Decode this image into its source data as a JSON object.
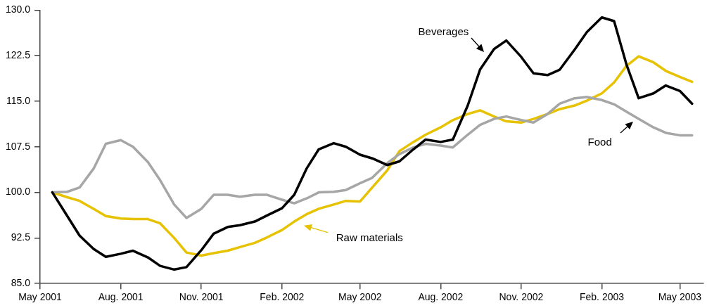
{
  "chart_data": {
    "type": "line",
    "x": [
      "2001-05-15",
      "2001-06-01",
      "2001-06-15",
      "2001-07-01",
      "2001-07-15",
      "2001-08-01",
      "2001-08-15",
      "2001-09-01",
      "2001-09-15",
      "2001-10-01",
      "2001-10-15",
      "2001-11-01",
      "2001-11-15",
      "2001-12-01",
      "2001-12-15",
      "2002-01-01",
      "2002-01-15",
      "2002-02-01",
      "2002-02-15",
      "2002-03-01",
      "2002-03-15",
      "2002-04-01",
      "2002-04-15",
      "2002-05-01",
      "2002-05-15",
      "2002-06-01",
      "2002-06-15",
      "2002-07-01",
      "2002-07-15",
      "2002-08-01",
      "2002-08-15",
      "2002-09-01",
      "2002-09-15",
      "2002-10-01",
      "2002-10-15",
      "2002-11-01",
      "2002-11-15",
      "2002-12-01",
      "2002-12-15",
      "2003-01-01",
      "2003-01-15",
      "2003-02-01",
      "2003-02-15",
      "2003-03-01",
      "2003-03-15",
      "2003-04-01",
      "2003-04-15",
      "2003-05-01",
      "2003-05-15"
    ],
    "series": [
      {
        "name": "Beverages",
        "color": "#000000",
        "values": [
          100,
          96.1,
          92.9,
          90.7,
          89.4,
          89.9,
          90.4,
          89.3,
          87.9,
          87.3,
          87.7,
          90.5,
          93.2,
          94.3,
          94.6,
          95.2,
          96.2,
          97.4,
          99.6,
          103.9,
          107.1,
          108.1,
          107.5,
          106.2,
          105.6,
          104.5,
          105.1,
          107.1,
          108.7,
          108.3,
          108.7,
          114.3,
          120.2,
          123.6,
          125.0,
          122.3,
          119.6,
          119.3,
          120.2,
          123.5,
          126.4,
          128.8,
          128.2,
          121.1,
          115.5,
          116.3,
          117.6,
          116.7,
          114.6
        ]
      },
      {
        "name": "Food",
        "color": "#a6a6a6",
        "values": [
          100,
          100.1,
          100.8,
          103.9,
          108.0,
          108.6,
          107.5,
          105.0,
          102.0,
          98.0,
          95.8,
          97.3,
          99.6,
          99.6,
          99.3,
          99.6,
          99.6,
          98.8,
          98.2,
          99.0,
          100.0,
          100.1,
          100.4,
          101.5,
          102.4,
          104.8,
          106.3,
          107.4,
          108.0,
          107.7,
          107.4,
          109.5,
          111.1,
          112.1,
          112.5,
          111.9,
          111.5,
          112.9,
          114.6,
          115.5,
          115.7,
          115.2,
          114.5,
          113.3,
          112.1,
          110.7,
          109.8,
          109.4,
          109.4
        ]
      },
      {
        "name": "Raw materials",
        "color": "#e6c200",
        "values": [
          100,
          99.2,
          98.6,
          97.3,
          96.1,
          95.7,
          95.6,
          95.6,
          94.9,
          92.5,
          90.1,
          89.6,
          90.0,
          90.4,
          91.0,
          91.7,
          92.6,
          93.8,
          95.2,
          96.4,
          97.3,
          98.0,
          98.6,
          98.5,
          100.8,
          103.6,
          106.8,
          108.3,
          109.5,
          110.7,
          111.9,
          112.9,
          113.5,
          112.5,
          111.7,
          111.5,
          112.1,
          112.9,
          113.7,
          114.3,
          115.1,
          116.3,
          118.1,
          120.8,
          122.4,
          121.4,
          120.0,
          119.0,
          118.2
        ]
      }
    ],
    "xlim": [
      "2001-05-01",
      "2003-05-28"
    ],
    "xticks": [
      {
        "value": "2001-05-01",
        "label": "May 2001"
      },
      {
        "value": "2001-08-01",
        "label": "Aug. 2001"
      },
      {
        "value": "2001-11-01",
        "label": "Nov. 2001"
      },
      {
        "value": "2002-02-01",
        "label": "Feb. 2002"
      },
      {
        "value": "2002-05-01",
        "label": "May 2002"
      },
      {
        "value": "2002-08-01",
        "label": "Aug. 2002"
      },
      {
        "value": "2002-11-01",
        "label": "Nov. 2002"
      },
      {
        "value": "2003-02-01",
        "label": "Feb. 2003"
      },
      {
        "value": "2003-05-01",
        "label": "May 2003"
      }
    ],
    "ylim": [
      85,
      130
    ],
    "yticks": [
      {
        "value": 85,
        "label": "85.0"
      },
      {
        "value": 92.5,
        "label": "92.5"
      },
      {
        "value": 100,
        "label": "100.0"
      },
      {
        "value": 107.5,
        "label": "107.5"
      },
      {
        "value": 115,
        "label": "115.0"
      },
      {
        "value": 122.5,
        "label": "122.5"
      },
      {
        "value": 130,
        "label": "130.0"
      }
    ],
    "grid": false,
    "legend": false,
    "marker": "none",
    "line_style": "solid"
  }
}
